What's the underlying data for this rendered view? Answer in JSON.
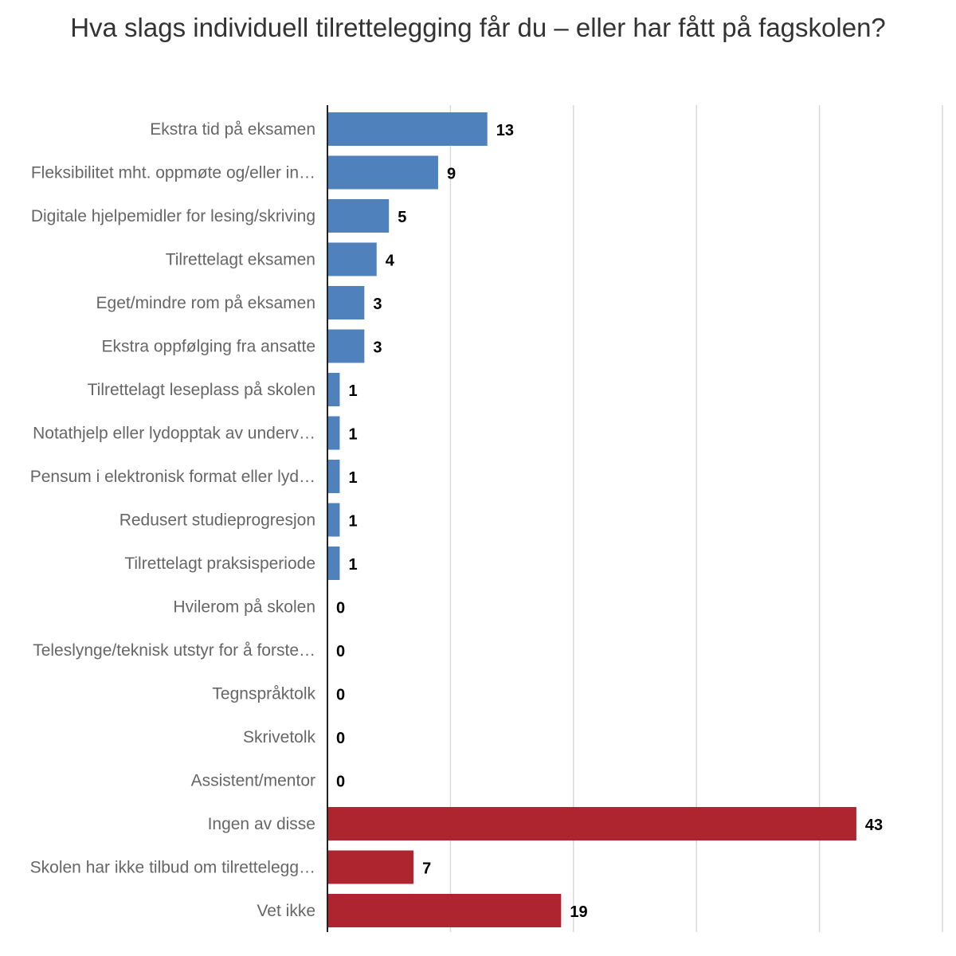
{
  "chart_data": {
    "type": "bar",
    "orientation": "horizontal",
    "title": "Hva slags individuell tilrettelegging får du – eller har fått på fagskolen?",
    "categories": [
      "Ekstra tid på eksamen",
      "Fleksibilitet mht. oppmøte og/eller in…",
      "Digitale hjelpemidler for lesing/skriving",
      "Tilrettelagt eksamen",
      "Eget/mindre rom på eksamen",
      "Ekstra oppfølging fra ansatte",
      "Tilrettelagt leseplass på skolen",
      "Notathjelp eller lydopptak av underv…",
      "Pensum i elektronisk format eller lyd…",
      "Redusert studieprogresjon",
      "Tilrettelagt praksisperiode",
      "Hvilerom på skolen",
      "Teleslynge/teknisk utstyr for å forste…",
      "Tegnspråktolk",
      "Skrivetolk",
      "Assistent/mentor",
      "Ingen av disse",
      "Skolen har ikke tilbud om tilrettelegg…",
      "Vet ikke"
    ],
    "values": [
      13,
      9,
      5,
      4,
      3,
      3,
      1,
      1,
      1,
      1,
      1,
      0,
      0,
      0,
      0,
      0,
      43,
      7,
      19
    ],
    "bar_colors": [
      "#4f81bd",
      "#4f81bd",
      "#4f81bd",
      "#4f81bd",
      "#4f81bd",
      "#4f81bd",
      "#4f81bd",
      "#4f81bd",
      "#4f81bd",
      "#4f81bd",
      "#4f81bd",
      "#4f81bd",
      "#4f81bd",
      "#4f81bd",
      "#4f81bd",
      "#4f81bd",
      "#ae2530",
      "#ae2530",
      "#ae2530"
    ],
    "xlim": [
      0,
      50
    ],
    "x_gridlines": [
      10,
      20,
      30,
      40,
      50
    ],
    "grid": true,
    "data_labels": true,
    "axis_color": "#222222",
    "grid_color": "#d9d9d9"
  }
}
